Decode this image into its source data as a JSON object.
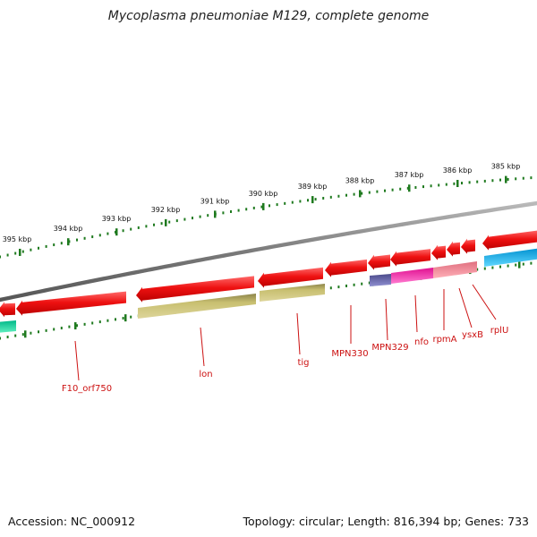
{
  "title": "Mycoplasma pneumoniae M129, complete genome",
  "footer": {
    "accession": "Accession: NC_000912",
    "summary": "Topology: circular; Length: 816,394 bp; Genes: 733"
  },
  "colors": {
    "backbone": "#7a7a7a",
    "tick": "#1f7a1f",
    "forward_gene": "#ee1111",
    "olive": "#c8bf70",
    "label": "#cc1111"
  },
  "ticks": [
    "385 kbp",
    "386 kbp",
    "387 kbp",
    "388 kbp",
    "389 kbp",
    "390 kbp",
    "391 kbp",
    "392 kbp",
    "393 kbp",
    "394 kbp",
    "395 kbp"
  ],
  "gene_labels": [
    "F10_orf750",
    "lon",
    "tig",
    "MPN330",
    "MPN329",
    "nfo",
    "rpmA",
    "ysxB",
    "rplU"
  ]
}
